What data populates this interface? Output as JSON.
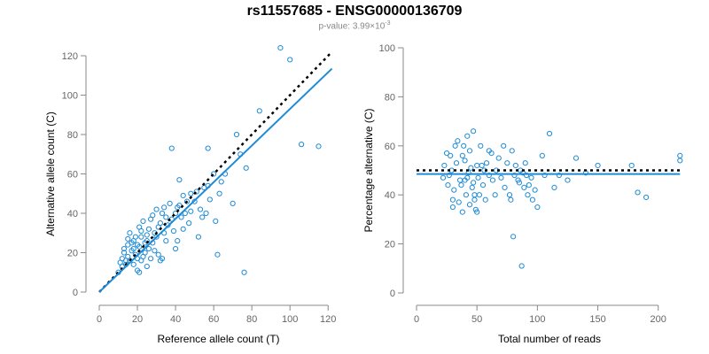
{
  "figure": {
    "title": "rs11557685 - ENSG00000136709",
    "pvalue_label": "p-value:",
    "pvalue_mantissa": "3.99×10",
    "pvalue_exponent": "-3"
  },
  "colors": {
    "points": "#1f8bd6",
    "fit_line": "#1f8bd6",
    "reference_line": "#000000",
    "axis": "#888888",
    "tick_text": "#666666"
  },
  "chart_data": [
    {
      "type": "scatter",
      "title": "",
      "xlabel": "Reference allele count (T)",
      "ylabel": "Alternative allele count (C)",
      "xlim": [
        0,
        125
      ],
      "ylim": [
        0,
        120
      ],
      "xticks": [
        0,
        20,
        40,
        60,
        80,
        100,
        120
      ],
      "yticks": [
        0,
        20,
        40,
        60,
        80,
        100,
        120
      ],
      "grid": false,
      "fit_line": {
        "slope": 0.93,
        "intercept": 0,
        "x_range": [
          0,
          122
        ]
      },
      "reference_line": {
        "slope": 1,
        "intercept": 0,
        "x_range": [
          0,
          122
        ],
        "style": "dotted"
      },
      "points": [
        [
          10,
          10
        ],
        [
          11,
          15
        ],
        [
          12,
          13
        ],
        [
          12,
          17
        ],
        [
          13,
          20
        ],
        [
          13,
          22
        ],
        [
          14,
          16
        ],
        [
          14,
          14
        ],
        [
          15,
          18
        ],
        [
          15,
          24
        ],
        [
          15,
          27
        ],
        [
          16,
          16
        ],
        [
          16,
          30
        ],
        [
          17,
          21
        ],
        [
          17,
          25
        ],
        [
          18,
          14
        ],
        [
          18,
          22
        ],
        [
          18,
          26
        ],
        [
          19,
          19
        ],
        [
          19,
          28
        ],
        [
          20,
          11
        ],
        [
          20,
          17
        ],
        [
          20,
          24
        ],
        [
          21,
          10
        ],
        [
          21,
          23
        ],
        [
          21,
          33
        ],
        [
          22,
          16
        ],
        [
          22,
          28
        ],
        [
          22,
          31
        ],
        [
          23,
          18
        ],
        [
          23,
          36
        ],
        [
          24,
          20
        ],
        [
          24,
          25
        ],
        [
          25,
          13
        ],
        [
          25,
          26
        ],
        [
          25,
          29
        ],
        [
          26,
          22
        ],
        [
          26,
          32
        ],
        [
          27,
          17
        ],
        [
          27,
          37
        ],
        [
          28,
          25
        ],
        [
          28,
          39
        ],
        [
          29,
          21
        ],
        [
          29,
          30
        ],
        [
          30,
          28
        ],
        [
          30,
          42
        ],
        [
          31,
          19
        ],
        [
          31,
          33
        ],
        [
          32,
          16
        ],
        [
          32,
          35
        ],
        [
          33,
          17
        ],
        [
          33,
          40
        ],
        [
          34,
          43
        ],
        [
          34,
          30
        ],
        [
          35,
          26
        ],
        [
          35,
          38
        ],
        [
          36,
          34
        ],
        [
          37,
          45
        ],
        [
          38,
          73
        ],
        [
          38,
          37
        ],
        [
          39,
          31
        ],
        [
          40,
          40
        ],
        [
          40,
          22
        ],
        [
          41,
          26
        ],
        [
          41,
          43
        ],
        [
          42,
          44
        ],
        [
          42,
          57
        ],
        [
          43,
          38
        ],
        [
          44,
          49
        ],
        [
          44,
          32
        ],
        [
          45,
          40
        ],
        [
          46,
          46
        ],
        [
          47,
          35
        ],
        [
          48,
          41
        ],
        [
          48,
          50
        ],
        [
          50,
          46
        ],
        [
          51,
          51
        ],
        [
          52,
          28
        ],
        [
          53,
          42
        ],
        [
          54,
          38
        ],
        [
          55,
          53
        ],
        [
          56,
          40
        ],
        [
          57,
          73
        ],
        [
          57,
          54
        ],
        [
          58,
          47
        ],
        [
          60,
          60
        ],
        [
          61,
          36
        ],
        [
          62,
          19
        ],
        [
          63,
          50
        ],
        [
          64,
          56
        ],
        [
          66,
          60
        ],
        [
          70,
          45
        ],
        [
          72,
          80
        ],
        [
          74,
          70
        ],
        [
          76,
          10
        ],
        [
          77,
          63
        ],
        [
          84,
          92
        ],
        [
          95,
          124
        ],
        [
          100,
          118
        ],
        [
          106,
          75
        ],
        [
          115,
          74
        ]
      ]
    },
    {
      "type": "scatter",
      "title": "",
      "xlabel": "Total number of reads",
      "ylabel": "Percentage alternative (C)",
      "xlim": [
        0,
        220
      ],
      "ylim": [
        0,
        100
      ],
      "xticks": [
        0,
        50,
        100,
        150,
        200
      ],
      "yticks": [
        0,
        20,
        40,
        60,
        80,
        100
      ],
      "grid": false,
      "fit_line": {
        "value": 48.5,
        "x_range": [
          0,
          218
        ]
      },
      "reference_line": {
        "value": 50,
        "x_range": [
          0,
          218
        ],
        "style": "dotted"
      },
      "points": [
        [
          22,
          47
        ],
        [
          23,
          52
        ],
        [
          25,
          57
        ],
        [
          26,
          44
        ],
        [
          27,
          48
        ],
        [
          28,
          56
        ],
        [
          29,
          50
        ],
        [
          30,
          38
        ],
        [
          30,
          35
        ],
        [
          31,
          42
        ],
        [
          32,
          60
        ],
        [
          33,
          53
        ],
        [
          34,
          62
        ],
        [
          35,
          37
        ],
        [
          36,
          46
        ],
        [
          37,
          44
        ],
        [
          38,
          56
        ],
        [
          38,
          33
        ],
        [
          39,
          60
        ],
        [
          40,
          46
        ],
        [
          40,
          54
        ],
        [
          41,
          40
        ],
        [
          42,
          47
        ],
        [
          42,
          64
        ],
        [
          43,
          49
        ],
        [
          44,
          36
        ],
        [
          44,
          58
        ],
        [
          45,
          51
        ],
        [
          46,
          43
        ],
        [
          47,
          45
        ],
        [
          47,
          66
        ],
        [
          48,
          38
        ],
        [
          48,
          40
        ],
        [
          49,
          34
        ],
        [
          50,
          33
        ],
        [
          50,
          52
        ],
        [
          51,
          47
        ],
        [
          52,
          40
        ],
        [
          53,
          60
        ],
        [
          54,
          52
        ],
        [
          55,
          44
        ],
        [
          56,
          50
        ],
        [
          57,
          38
        ],
        [
          58,
          53
        ],
        [
          60,
          48
        ],
        [
          60,
          58
        ],
        [
          62,
          57
        ],
        [
          63,
          46
        ],
        [
          65,
          40
        ],
        [
          66,
          50
        ],
        [
          68,
          55
        ],
        [
          70,
          47
        ],
        [
          72,
          60
        ],
        [
          73,
          43
        ],
        [
          75,
          53
        ],
        [
          77,
          40
        ],
        [
          78,
          38
        ],
        [
          79,
          58
        ],
        [
          80,
          23
        ],
        [
          81,
          48
        ],
        [
          82,
          52
        ],
        [
          84,
          46
        ],
        [
          85,
          45
        ],
        [
          86,
          50
        ],
        [
          87,
          11
        ],
        [
          88,
          49
        ],
        [
          89,
          43
        ],
        [
          90,
          53
        ],
        [
          91,
          48
        ],
        [
          92,
          40
        ],
        [
          93,
          44
        ],
        [
          95,
          47
        ],
        [
          96,
          38
        ],
        [
          98,
          42
        ],
        [
          100,
          35
        ],
        [
          104,
          56
        ],
        [
          106,
          48
        ],
        [
          110,
          65
        ],
        [
          114,
          43
        ],
        [
          118,
          48
        ],
        [
          125,
          46
        ],
        [
          132,
          55
        ],
        [
          140,
          49
        ],
        [
          150,
          52
        ],
        [
          178,
          52
        ],
        [
          183,
          41
        ],
        [
          190,
          39
        ],
        [
          218,
          54
        ],
        [
          218,
          56
        ]
      ]
    }
  ]
}
